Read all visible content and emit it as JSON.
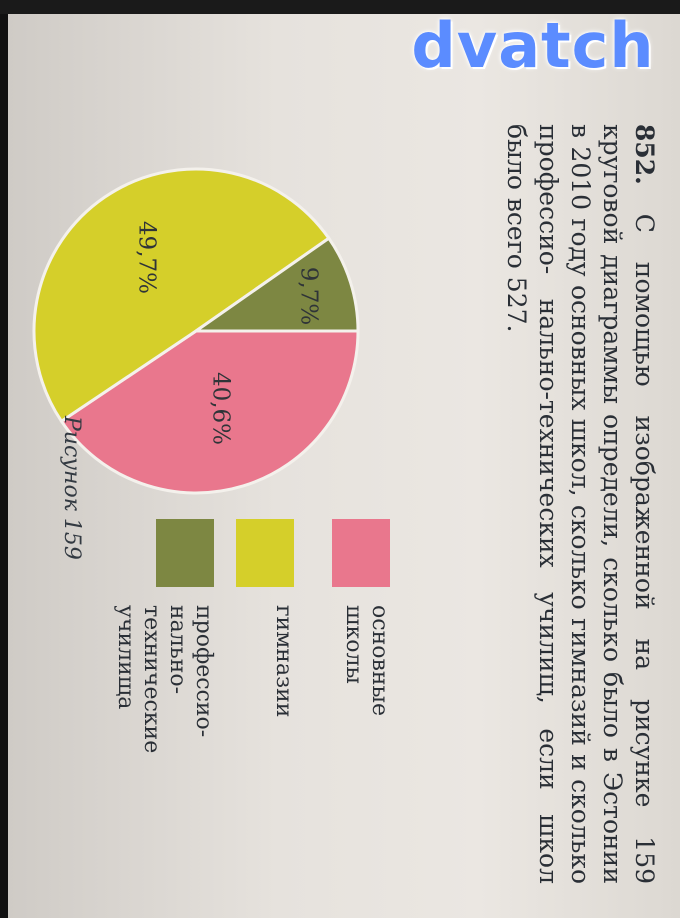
{
  "watermark": "dvatch",
  "problem": {
    "number": "852.",
    "lines": [
      "С помощью изображенной на рисунке 159",
      "круговой диаграммы определи, сколько",
      "было в Эстонии в 2010 году основных школ,",
      "сколько гимназий и сколько профессио-",
      "нально-технических училищ, если школ",
      "было всего 527."
    ]
  },
  "caption": "Рисунок 159",
  "legend": [
    {
      "lines": [
        "основные",
        "школы"
      ],
      "color": "#e9778d"
    },
    {
      "lines": [
        "гимназии"
      ],
      "color": "#d5cf2a"
    },
    {
      "lines": [
        "профессио-",
        "нально-",
        "технические",
        "училища"
      ],
      "color": "#7d8742"
    }
  ],
  "chart_data": {
    "type": "pie",
    "title": "",
    "slices": [
      {
        "label": "основные школы",
        "value_label": "40,6%",
        "value": 40.6,
        "color": "#e9778d"
      },
      {
        "label": "гимназии",
        "value_label": "49,7%",
        "value": 49.7,
        "color": "#d5cf2a"
      },
      {
        "label": "профессионально-технические училища",
        "value_label": "9,7%",
        "value": 9.7,
        "color": "#7d8742"
      }
    ],
    "legend_position": "right"
  }
}
